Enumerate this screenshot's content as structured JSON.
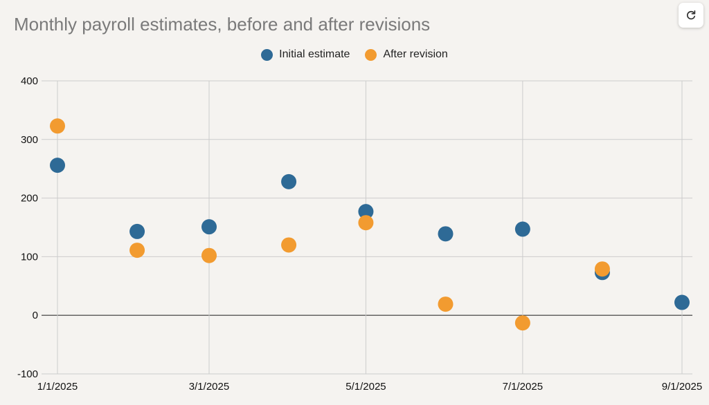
{
  "chart_data": {
    "type": "scatter",
    "title": "Monthly payroll estimates, before and after revisions",
    "xlabel": "",
    "ylabel": "",
    "x_ticks": [
      "1/1/2025",
      "3/1/2025",
      "5/1/2025",
      "7/1/2025",
      "9/1/2025"
    ],
    "y_ticks": [
      -100,
      0,
      100,
      200,
      300,
      400
    ],
    "ylim": [
      -100,
      400
    ],
    "xlim": [
      "1/1/2025",
      "9/1/2025"
    ],
    "grid": true,
    "legend_position": "top-center",
    "series": [
      {
        "name": "Initial estimate",
        "color": "#2e6a96",
        "points": [
          {
            "x": "1/1/2025",
            "y": 256
          },
          {
            "x": "2/1/2025",
            "y": 143
          },
          {
            "x": "3/1/2025",
            "y": 151
          },
          {
            "x": "4/1/2025",
            "y": 228
          },
          {
            "x": "5/1/2025",
            "y": 177
          },
          {
            "x": "6/1/2025",
            "y": 139
          },
          {
            "x": "7/1/2025",
            "y": 147
          },
          {
            "x": "8/1/2025",
            "y": 73
          },
          {
            "x": "9/1/2025",
            "y": 22
          }
        ]
      },
      {
        "name": "After revision",
        "color": "#f29b30",
        "points": [
          {
            "x": "1/1/2025",
            "y": 323
          },
          {
            "x": "2/1/2025",
            "y": 111
          },
          {
            "x": "3/1/2025",
            "y": 102
          },
          {
            "x": "4/1/2025",
            "y": 120
          },
          {
            "x": "5/1/2025",
            "y": 158
          },
          {
            "x": "6/1/2025",
            "y": 19
          },
          {
            "x": "7/1/2025",
            "y": -13
          },
          {
            "x": "8/1/2025",
            "y": 79
          }
        ]
      }
    ]
  },
  "icons": {
    "refresh": "refresh-icon"
  }
}
